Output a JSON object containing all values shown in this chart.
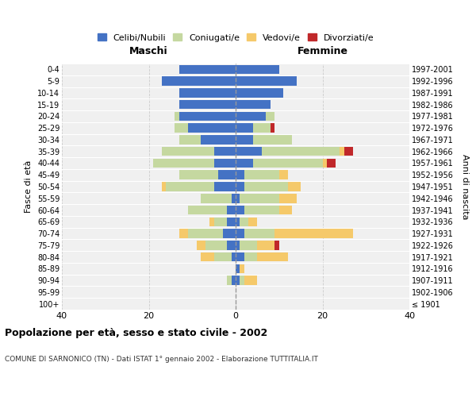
{
  "age_groups": [
    "100+",
    "95-99",
    "90-94",
    "85-89",
    "80-84",
    "75-79",
    "70-74",
    "65-69",
    "60-64",
    "55-59",
    "50-54",
    "45-49",
    "40-44",
    "35-39",
    "30-34",
    "25-29",
    "20-24",
    "15-19",
    "10-14",
    "5-9",
    "0-4"
  ],
  "birth_years": [
    "≤ 1901",
    "1902-1906",
    "1907-1911",
    "1912-1916",
    "1917-1921",
    "1922-1926",
    "1927-1931",
    "1932-1936",
    "1937-1941",
    "1942-1946",
    "1947-1951",
    "1952-1956",
    "1957-1961",
    "1962-1966",
    "1967-1971",
    "1972-1976",
    "1977-1981",
    "1982-1986",
    "1987-1991",
    "1992-1996",
    "1997-2001"
  ],
  "maschi": {
    "celibi": [
      0,
      0,
      1,
      0,
      1,
      2,
      3,
      2,
      2,
      1,
      5,
      4,
      5,
      5,
      8,
      11,
      13,
      13,
      13,
      17,
      13
    ],
    "coniugati": [
      0,
      0,
      1,
      0,
      4,
      5,
      8,
      3,
      9,
      7,
      11,
      9,
      14,
      12,
      5,
      3,
      1,
      0,
      0,
      0,
      0
    ],
    "vedovi": [
      0,
      0,
      0,
      0,
      3,
      2,
      2,
      1,
      0,
      0,
      1,
      0,
      0,
      0,
      0,
      0,
      0,
      0,
      0,
      0,
      0
    ],
    "divorziati": [
      0,
      0,
      0,
      0,
      0,
      0,
      0,
      0,
      0,
      0,
      0,
      0,
      0,
      0,
      0,
      0,
      0,
      0,
      0,
      0,
      0
    ]
  },
  "femmine": {
    "nubili": [
      0,
      0,
      1,
      1,
      2,
      1,
      2,
      1,
      2,
      1,
      2,
      2,
      4,
      6,
      4,
      4,
      7,
      8,
      11,
      14,
      10
    ],
    "coniugate": [
      0,
      0,
      1,
      0,
      3,
      4,
      7,
      2,
      8,
      9,
      10,
      8,
      16,
      18,
      9,
      4,
      2,
      0,
      0,
      0,
      0
    ],
    "vedove": [
      0,
      0,
      3,
      1,
      7,
      4,
      18,
      2,
      3,
      4,
      3,
      2,
      1,
      1,
      0,
      0,
      0,
      0,
      0,
      0,
      0
    ],
    "divorziate": [
      0,
      0,
      0,
      0,
      0,
      1,
      0,
      0,
      0,
      0,
      0,
      0,
      2,
      2,
      0,
      1,
      0,
      0,
      0,
      0,
      0
    ]
  },
  "colors": {
    "celibi": "#4472c4",
    "coniugati": "#c5d8a0",
    "vedovi": "#f5c96a",
    "divorziati": "#c0282a"
  },
  "title": "Popolazione per età, sesso e stato civile - 2002",
  "subtitle": "COMUNE DI SARNONICO (TN) - Dati ISTAT 1° gennaio 2002 - Elaborazione TUTTITALIA.IT",
  "xlabel_left": "Maschi",
  "xlabel_right": "Femmine",
  "ylabel_left": "Fasce di età",
  "ylabel_right": "Anni di nascita",
  "xlim": 40,
  "background_color": "#ffffff",
  "plot_bg": "#f0f0f0",
  "grid_color": "#cccccc",
  "legend_labels": [
    "Celibi/Nubili",
    "Coniugati/e",
    "Vedovi/e",
    "Divorziati/e"
  ]
}
